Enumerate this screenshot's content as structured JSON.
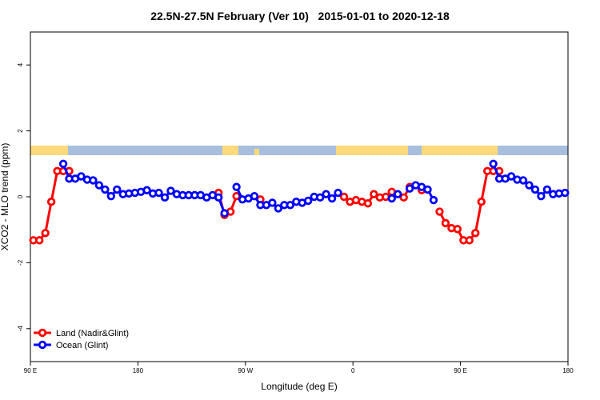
{
  "chart_data": {
    "type": "line",
    "title": "22.5N-27.5N February (Ver 10)   2015-01-01 to 2020-12-18",
    "x_label": "Longitude (deg E)",
    "y_label": "XCO2 - MLO trend (ppm)",
    "xlim": [
      90,
      540
    ],
    "xticks": [
      {
        "value": 90,
        "label": "90 E"
      },
      180,
      {
        "value": 270,
        "label": "90 W"
      },
      {
        "value": 360,
        "label": "0"
      },
      {
        "value": 450,
        "label": "90 E"
      },
      {
        "value": 540,
        "label": "180"
      }
    ],
    "ylim": [
      -5,
      5
    ],
    "yticks": [
      -4,
      -2,
      0,
      2,
      4
    ],
    "grid": false,
    "legend": "bottomleft",
    "x": [
      92.5,
      97.5,
      102.5,
      107.5,
      112.5,
      117.5,
      122.5,
      127.5,
      132.5,
      137.5,
      142.5,
      147.5,
      152.5,
      157.5,
      162.5,
      167.5,
      172.5,
      177.5,
      182.5,
      187.5,
      192.5,
      197.5,
      202.5,
      207.5,
      212.5,
      217.5,
      222.5,
      227.5,
      232.5,
      237.5,
      242.5,
      247.5,
      252.5,
      257.5,
      262.5,
      267.5,
      272.5,
      277.5,
      282.5,
      287.5,
      292.5,
      297.5,
      302.5,
      307.5,
      312.5,
      317.5,
      322.5,
      327.5,
      332.5,
      337.5,
      342.5,
      347.5,
      352.5,
      357.5,
      362.5,
      367.5,
      372.5,
      377.5,
      382.5,
      387.5,
      392.5,
      397.5,
      402.5,
      407.5,
      412.5,
      417.5,
      422.5,
      427.5,
      432.5,
      437.5,
      442.5,
      447.5,
      452.5,
      457.5,
      462.5,
      467.5,
      472.5,
      477.5,
      482.5,
      487.5,
      492.5,
      497.5,
      502.5,
      507.5,
      512.5,
      517.5,
      522.5,
      527.5,
      532.5,
      537.5
    ],
    "series": [
      {
        "name": "Land (Nadir&Glint)",
        "color": "#ff0000",
        "values": [
          -1.32,
          -1.32,
          -1.1,
          -0.15,
          0.78,
          0.78,
          0.78,
          null,
          null,
          null,
          null,
          null,
          null,
          null,
          null,
          null,
          null,
          null,
          null,
          null,
          null,
          null,
          null,
          null,
          null,
          null,
          null,
          null,
          null,
          null,
          null,
          0.12,
          -0.55,
          -0.45,
          0.02,
          null,
          null,
          null,
          -0.08,
          null,
          null,
          null,
          null,
          null,
          null,
          null,
          null,
          null,
          null,
          null,
          null,
          null,
          0,
          -0.15,
          -0.1,
          -0.15,
          -0.2,
          0.08,
          -0.02,
          0,
          0.15,
          null,
          -0.02,
          0.3,
          null,
          0.2,
          null,
          null,
          -0.45,
          -0.8,
          -0.95,
          -0.98,
          -1.32,
          -1.32,
          -1.1,
          -0.15,
          0.78,
          0.78,
          0.78,
          null,
          null,
          null,
          null,
          null,
          null,
          null,
          null,
          null,
          null,
          null
        ]
      },
      {
        "name": "Ocean (Glint)",
        "color": "#0000ff",
        "values": [
          null,
          null,
          null,
          null,
          null,
          1.0,
          0.55,
          0.55,
          0.62,
          0.52,
          0.5,
          0.35,
          0.22,
          0.02,
          0.22,
          0.08,
          0.1,
          0.12,
          0.15,
          0.2,
          0.1,
          0.12,
          -0.02,
          0.18,
          0.08,
          0.05,
          0.05,
          0.05,
          0.05,
          -0.02,
          0.05,
          -0.02,
          -0.5,
          null,
          0.3,
          -0.08,
          -0.05,
          0.02,
          -0.25,
          -0.25,
          -0.18,
          -0.35,
          -0.25,
          -0.25,
          -0.15,
          -0.18,
          -0.12,
          0,
          -0.02,
          0.08,
          -0.05,
          0.12,
          null,
          null,
          null,
          null,
          null,
          null,
          null,
          null,
          -0.05,
          0.08,
          null,
          0.25,
          0.35,
          0.3,
          0.22,
          -0.1,
          null,
          null,
          null,
          null,
          null,
          null,
          null,
          null,
          null,
          1.0,
          0.55,
          0.55,
          0.62,
          0.52,
          0.5,
          0.35,
          0.22,
          0.02,
          0.22,
          0.08,
          0.1,
          0.12
        ]
      }
    ]
  }
}
